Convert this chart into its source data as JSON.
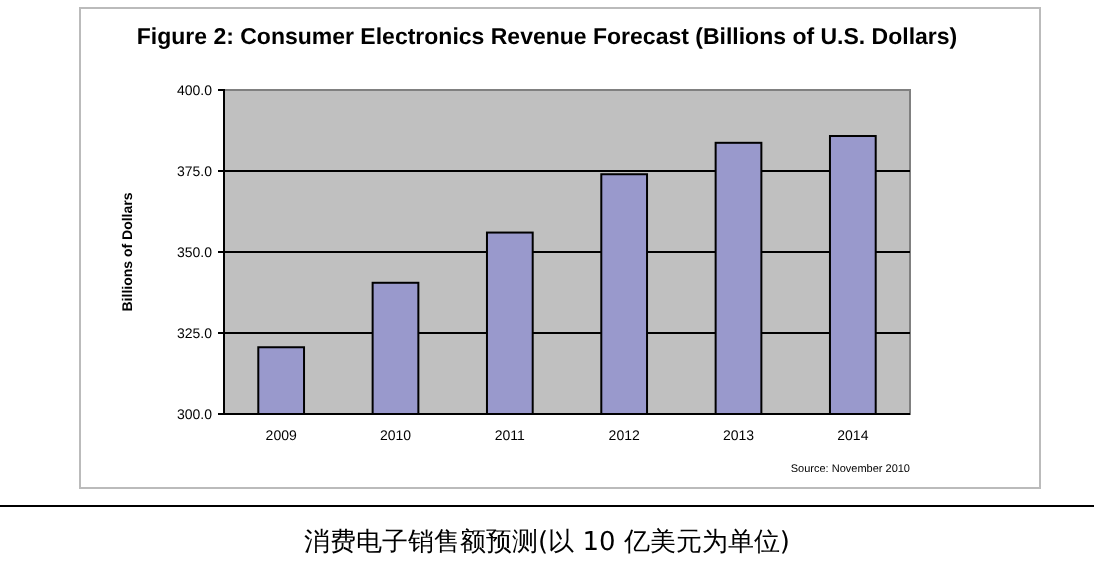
{
  "chart_data": {
    "type": "bar",
    "title": "Figure 2: Consumer Electronics Revenue Forecast (Billions of U.S. Dollars)",
    "ylabel": "Billions of Dollars",
    "categories": [
      "2009",
      "2010",
      "2011",
      "2012",
      "2013",
      "2014"
    ],
    "values": [
      320.6,
      340.5,
      356,
      374,
      383.7,
      385.8
    ],
    "color": "#9999cc",
    "ylim": [
      300,
      400
    ],
    "yticks": [
      {
        "value": 300,
        "label": "300.0"
      },
      {
        "value": 325,
        "label": "325.0"
      },
      {
        "value": 350,
        "label": "350.0"
      },
      {
        "value": 375,
        "label": "375.0"
      },
      {
        "value": 400,
        "label": "400.0"
      }
    ],
    "grid": "y",
    "annotations": [
      "Source: November 2010",
      "消费电子销售额预测(以 10 亿美元为单位)"
    ]
  }
}
